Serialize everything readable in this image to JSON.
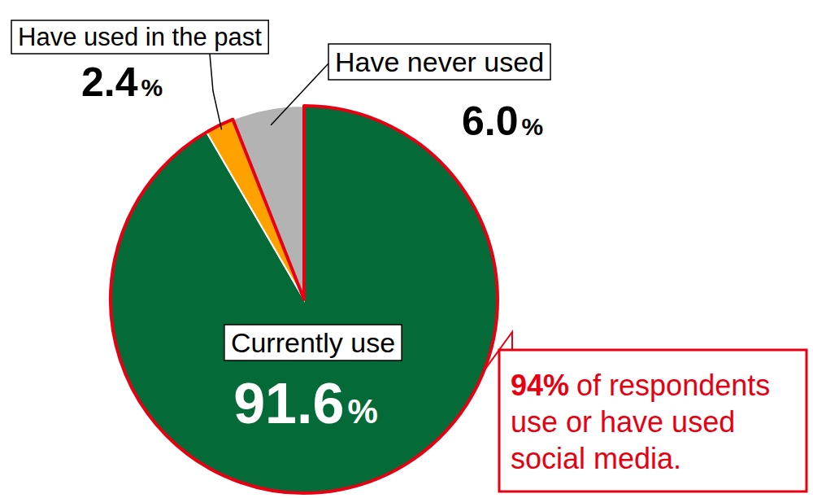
{
  "chart_data": {
    "type": "pie",
    "categories": [
      "Currently use",
      "Have used in the past",
      "Have never used"
    ],
    "values": [
      91.6,
      2.4,
      6.0
    ],
    "value_labels": [
      "91.6%",
      "2.4%",
      "6.0%"
    ],
    "colors": [
      "#046a38",
      "#ffa200",
      "#b3b3b3"
    ],
    "data_labels": true,
    "annotation": {
      "highlight": "94%",
      "lines": [
        "of respondents",
        "use or have used",
        "social media."
      ]
    }
  }
}
